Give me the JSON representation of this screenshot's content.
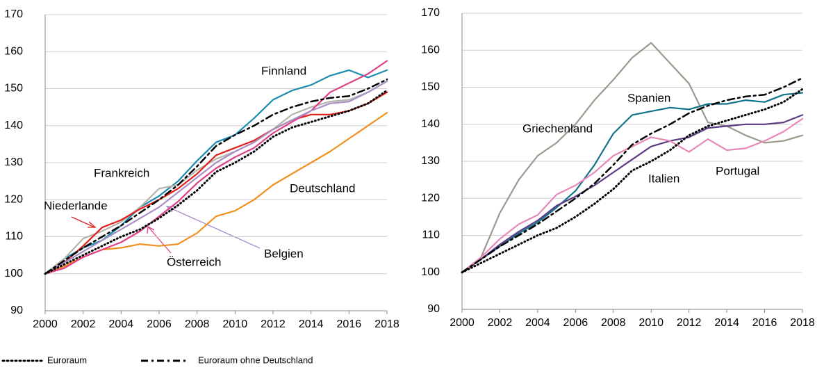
{
  "chart_data": [
    {
      "type": "line",
      "x": [
        2000,
        2001,
        2002,
        2003,
        2004,
        2005,
        2006,
        2007,
        2008,
        2009,
        2010,
        2011,
        2012,
        2013,
        2014,
        2015,
        2016,
        2017,
        2018
      ],
      "xlim": [
        2000,
        2018
      ],
      "xticks": [
        2000,
        2002,
        2004,
        2006,
        2008,
        2010,
        2012,
        2014,
        2016,
        2018
      ],
      "ylim": [
        90,
        170
      ],
      "yticks": [
        90,
        100,
        110,
        120,
        130,
        140,
        150,
        160,
        170
      ],
      "grid": true,
      "series": [
        {
          "name": "Euroraum",
          "color": "#000000",
          "line_style": "dotted",
          "values": [
            100,
            102.5,
            105,
            107.5,
            110,
            112,
            115,
            118.5,
            122.5,
            127.5,
            130,
            133,
            137,
            139.5,
            141,
            142.5,
            144,
            146,
            149.5
          ]
        },
        {
          "name": "Euroraum ohne Deutschland",
          "color": "#000000",
          "line_style": "dashdot",
          "values": [
            100,
            103.5,
            107,
            110,
            113,
            116.5,
            120,
            124,
            129,
            134.5,
            137.5,
            140,
            143,
            145,
            146.5,
            147.5,
            148,
            150,
            152.5
          ]
        },
        {
          "name": "Finnland",
          "color": "#1a8cb0",
          "line_style": "solid",
          "values": [
            100,
            104,
            107,
            109,
            113,
            118,
            121,
            125,
            130.5,
            135.5,
            137.5,
            142,
            147,
            149.5,
            151,
            153.5,
            155,
            153,
            155
          ]
        },
        {
          "name": "Frankreich",
          "color": "#b4b4aa",
          "line_style": "solid",
          "values": [
            100,
            104,
            109.5,
            111.5,
            114,
            118,
            123,
            124,
            128,
            131,
            133,
            135.5,
            139,
            143,
            145,
            146.5,
            147,
            149,
            152
          ]
        },
        {
          "name": "Niederlande",
          "color": "#e0201c",
          "line_style": "solid",
          "values": [
            100,
            103,
            107.5,
            112.5,
            114.5,
            117.5,
            120,
            123,
            127,
            132,
            134,
            136,
            139,
            141.5,
            143,
            143,
            144,
            146,
            149
          ]
        },
        {
          "name": "Deutschland",
          "color": "#f0901e",
          "line_style": "solid",
          "values": [
            100,
            102,
            104.5,
            106.5,
            107,
            108,
            107.5,
            108,
            111,
            115.5,
            117,
            120,
            124,
            127,
            130,
            133,
            136.5,
            140,
            143.5
          ]
        },
        {
          "name": "Österreich",
          "color": "#e0408a",
          "line_style": "solid",
          "values": [
            100,
            101.5,
            104.5,
            106.5,
            108.5,
            111.5,
            115.5,
            119.5,
            124.5,
            128.5,
            131.5,
            134,
            138,
            141,
            144,
            149,
            151.5,
            154,
            157.5
          ]
        },
        {
          "name": "Belgien",
          "color": "#a98fc4",
          "line_style": "solid",
          "values": [
            100,
            103,
            106,
            109,
            112,
            115,
            118,
            122,
            126,
            130,
            133,
            135.5,
            139,
            141.5,
            144,
            146,
            146.5,
            149,
            152
          ]
        }
      ]
    },
    {
      "type": "line",
      "x": [
        2000,
        2001,
        2002,
        2003,
        2004,
        2005,
        2006,
        2007,
        2008,
        2009,
        2010,
        2011,
        2012,
        2013,
        2014,
        2015,
        2016,
        2017,
        2018
      ],
      "xlim": [
        2000,
        2018
      ],
      "xticks": [
        2000,
        2002,
        2004,
        2006,
        2008,
        2010,
        2012,
        2014,
        2016,
        2018
      ],
      "ylim": [
        90,
        170
      ],
      "yticks": [
        90,
        100,
        110,
        120,
        130,
        140,
        150,
        160,
        170
      ],
      "grid": true,
      "series": [
        {
          "name": "Euroraum",
          "color": "#000000",
          "line_style": "dotted",
          "values": [
            100,
            102.5,
            105,
            107.5,
            110,
            112,
            115,
            118.5,
            122.5,
            127.5,
            130,
            133,
            137,
            139.5,
            141,
            142.5,
            144,
            146,
            149.5
          ]
        },
        {
          "name": "Euroraum ohne Deutschland",
          "color": "#000000",
          "line_style": "dashdot",
          "values": [
            100,
            103.5,
            107,
            110,
            113,
            116.5,
            120,
            124,
            129,
            134.5,
            137.5,
            140,
            143,
            145,
            146.5,
            147.5,
            148,
            150,
            152.5
          ]
        },
        {
          "name": "Griechenland",
          "color": "#999a8c",
          "line_style": "solid",
          "values": [
            100,
            104,
            116,
            125,
            131.5,
            135,
            140,
            146.5,
            152,
            158,
            162,
            156.5,
            151,
            140.5,
            139.5,
            137,
            135,
            135.5,
            137
          ]
        },
        {
          "name": "Spanien",
          "color": "#13738a",
          "line_style": "solid",
          "values": [
            100,
            103.5,
            107,
            110.5,
            113.5,
            117.5,
            122,
            129,
            137.5,
            142.5,
            143.5,
            144.5,
            144,
            145.5,
            145.5,
            146.5,
            146,
            148,
            148.5
          ]
        },
        {
          "name": "Italien",
          "color": "#5c3a82",
          "line_style": "solid",
          "values": [
            100,
            103.5,
            107.5,
            111,
            114,
            118,
            120.5,
            123.5,
            127,
            130.5,
            134,
            135.5,
            136.5,
            139,
            139.5,
            140,
            140,
            140.5,
            142.5
          ]
        },
        {
          "name": "Portugal",
          "color": "#e888b8",
          "line_style": "solid",
          "values": [
            100,
            104,
            109,
            113,
            115.5,
            121,
            123.5,
            127,
            131.5,
            134,
            136.5,
            135.5,
            132.5,
            136,
            133,
            133.5,
            135.5,
            138,
            141.5
          ]
        }
      ]
    }
  ]
}
